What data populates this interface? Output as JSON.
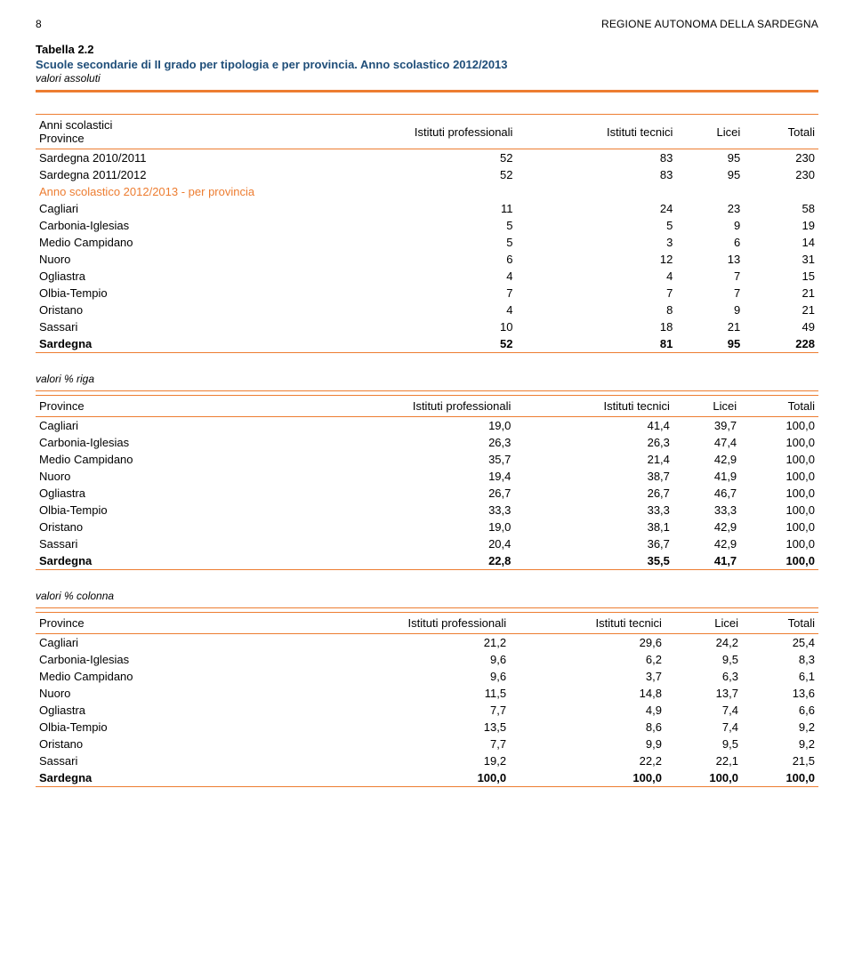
{
  "header": {
    "page_number": "8",
    "region": "REGIONE AUTONOMA DELLA SARDEGNA"
  },
  "table_meta": {
    "number": "Tabella 2.2",
    "title": "Scuole secondarie di II grado per tipologia e per provincia. Anno scolastico 2012/2013",
    "subtitle": "valori assoluti"
  },
  "columns": {
    "c0_a": "Anni scolastici",
    "c0_b": "Province",
    "c1": "Istituti professionali",
    "c2": "Istituti tecnici",
    "c3": "Licei",
    "c4": "Totali"
  },
  "section1": {
    "rows_year": [
      {
        "label": "Sardegna 2010/2011",
        "v": [
          "52",
          "83",
          "95",
          "230"
        ]
      },
      {
        "label": "Sardegna 2011/2012",
        "v": [
          "52",
          "83",
          "95",
          "230"
        ]
      }
    ],
    "subhead": "Anno scolastico 2012/2013 - per provincia",
    "rows_prov": [
      {
        "label": "Cagliari",
        "v": [
          "11",
          "24",
          "23",
          "58"
        ]
      },
      {
        "label": "Carbonia-Iglesias",
        "v": [
          "5",
          "5",
          "9",
          "19"
        ]
      },
      {
        "label": "Medio Campidano",
        "v": [
          "5",
          "3",
          "6",
          "14"
        ]
      },
      {
        "label": "Nuoro",
        "v": [
          "6",
          "12",
          "13",
          "31"
        ]
      },
      {
        "label": "Ogliastra",
        "v": [
          "4",
          "4",
          "7",
          "15"
        ]
      },
      {
        "label": "Olbia-Tempio",
        "v": [
          "7",
          "7",
          "7",
          "21"
        ]
      },
      {
        "label": "Oristano",
        "v": [
          "4",
          "8",
          "9",
          "21"
        ]
      },
      {
        "label": "Sassari",
        "v": [
          "10",
          "18",
          "21",
          "49"
        ]
      }
    ],
    "total": {
      "label": "Sardegna",
      "v": [
        "52",
        "81",
        "95",
        "228"
      ]
    }
  },
  "section2": {
    "label": "valori % riga",
    "rows": [
      {
        "label": "Cagliari",
        "v": [
          "19,0",
          "41,4",
          "39,7",
          "100,0"
        ]
      },
      {
        "label": "Carbonia-Iglesias",
        "v": [
          "26,3",
          "26,3",
          "47,4",
          "100,0"
        ]
      },
      {
        "label": "Medio Campidano",
        "v": [
          "35,7",
          "21,4",
          "42,9",
          "100,0"
        ]
      },
      {
        "label": "Nuoro",
        "v": [
          "19,4",
          "38,7",
          "41,9",
          "100,0"
        ]
      },
      {
        "label": "Ogliastra",
        "v": [
          "26,7",
          "26,7",
          "46,7",
          "100,0"
        ]
      },
      {
        "label": "Olbia-Tempio",
        "v": [
          "33,3",
          "33,3",
          "33,3",
          "100,0"
        ]
      },
      {
        "label": "Oristano",
        "v": [
          "19,0",
          "38,1",
          "42,9",
          "100,0"
        ]
      },
      {
        "label": "Sassari",
        "v": [
          "20,4",
          "36,7",
          "42,9",
          "100,0"
        ]
      }
    ],
    "total": {
      "label": "Sardegna",
      "v": [
        "22,8",
        "35,5",
        "41,7",
        "100,0"
      ]
    }
  },
  "section3": {
    "label": "valori % colonna",
    "rows": [
      {
        "label": "Cagliari",
        "v": [
          "21,2",
          "29,6",
          "24,2",
          "25,4"
        ]
      },
      {
        "label": "Carbonia-Iglesias",
        "v": [
          "9,6",
          "6,2",
          "9,5",
          "8,3"
        ]
      },
      {
        "label": "Medio Campidano",
        "v": [
          "9,6",
          "3,7",
          "6,3",
          "6,1"
        ]
      },
      {
        "label": "Nuoro",
        "v": [
          "11,5",
          "14,8",
          "13,7",
          "13,6"
        ]
      },
      {
        "label": "Ogliastra",
        "v": [
          "7,7",
          "4,9",
          "7,4",
          "6,6"
        ]
      },
      {
        "label": "Olbia-Tempio",
        "v": [
          "13,5",
          "8,6",
          "7,4",
          "9,2"
        ]
      },
      {
        "label": "Oristano",
        "v": [
          "7,7",
          "9,9",
          "9,5",
          "9,2"
        ]
      },
      {
        "label": "Sassari",
        "v": [
          "19,2",
          "22,2",
          "22,1",
          "21,5"
        ]
      }
    ],
    "total": {
      "label": "Sardegna",
      "v": [
        "100,0",
        "100,0",
        "100,0",
        "100,0"
      ]
    }
  }
}
